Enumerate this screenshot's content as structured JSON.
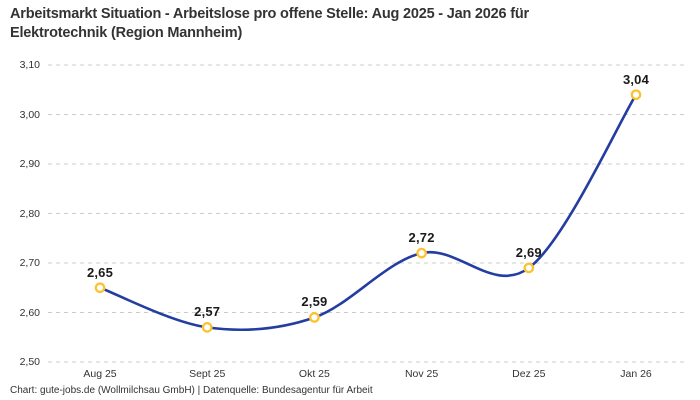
{
  "title": {
    "line1": "Arbeitsmarkt Situation - Arbeitslose pro offene Stelle: Aug 2025 - Jan 2026 für",
    "line2": "Elektrotechnik (Region Mannheim)"
  },
  "footer": "Chart: gute-jobs.de (Wollmilchsau GmbH) | Datenquelle: Bundesagentur für Arbeit",
  "chart_data": {
    "type": "line",
    "title": "Arbeitsmarkt Situation - Arbeitslose pro offene Stelle: Aug 2025 - Jan 2026 für Elektrotechnik (Region Mannheim)",
    "categories": [
      "Aug 25",
      "Sept 25",
      "Okt 25",
      "Nov 25",
      "Dez 25",
      "Jan 26"
    ],
    "values": [
      2.65,
      2.57,
      2.59,
      2.72,
      2.69,
      3.04
    ],
    "value_labels": [
      "2,65",
      "2,57",
      "2,59",
      "2,72",
      "2,69",
      "3,04"
    ],
    "y_ticks": [
      "3,10",
      "3,00",
      "2,90",
      "2,80",
      "2,70",
      "2,60",
      "2,50"
    ],
    "y_tick_values": [
      3.1,
      3.0,
      2.9,
      2.8,
      2.7,
      2.6,
      2.5
    ],
    "ylim": [
      2.5,
      3.1
    ],
    "xlabel": "",
    "ylabel": "",
    "grid": "horizontal-dashed",
    "legend": "none",
    "line_style": "smooth",
    "marker_style": "open-circle",
    "colors": {
      "line": "#233da0",
      "marker_stroke": "#fcc330",
      "marker_fill": "#ffffff",
      "gridline": "#cccccc",
      "title_text": "#333333",
      "tick_text": "#333333",
      "value_label_text": "#1a1a1a",
      "background": "#ffffff"
    }
  }
}
